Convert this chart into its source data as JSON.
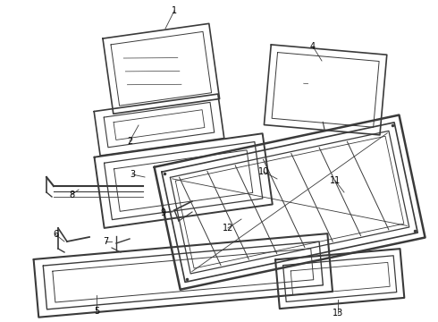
{
  "bg_color": "#ffffff",
  "lc": "#3a3a3a",
  "label_color": "#000000",
  "lw_base": 1.0,
  "figsize": [
    4.9,
    3.6
  ],
  "dpi": 100
}
